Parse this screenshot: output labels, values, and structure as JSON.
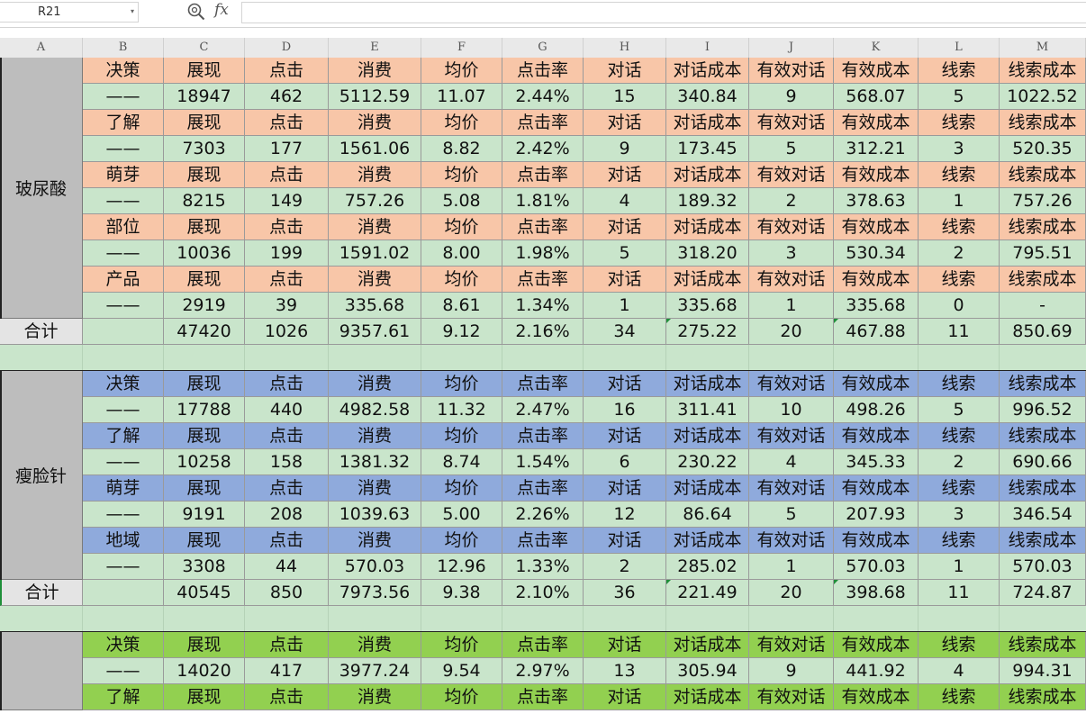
{
  "formula_bar": {
    "cell_ref": "R21",
    "fx_label": "fx",
    "formula": ""
  },
  "columns": [
    "A",
    "B",
    "C",
    "D",
    "E",
    "F",
    "G",
    "H",
    "I",
    "J",
    "K",
    "L",
    "M"
  ],
  "metric_headers": [
    "展现",
    "点击",
    "消费",
    "均价",
    "点击率",
    "对话",
    "对话成本",
    "有效对话",
    "有效成本",
    "线索",
    "线索成本"
  ],
  "dash_label": "——",
  "total_label": "合计",
  "colors": {
    "green_row": "#c9e5cb",
    "group_header": [
      "#f8c6a8",
      "#8faadc",
      "#92d050"
    ],
    "group_label_bg": "#bdbdbd"
  },
  "groups": [
    {
      "name": "玻尿酸",
      "blocks": [
        {
          "label": "决策",
          "values": [
            "18947",
            "462",
            "5112.59",
            "11.07",
            "2.44%",
            "15",
            "340.84",
            "9",
            "568.07",
            "5",
            "1022.52"
          ]
        },
        {
          "label": "了解",
          "values": [
            "7303",
            "177",
            "1561.06",
            "8.82",
            "2.42%",
            "9",
            "173.45",
            "5",
            "312.21",
            "3",
            "520.35"
          ]
        },
        {
          "label": "萌芽",
          "values": [
            "8215",
            "149",
            "757.26",
            "5.08",
            "1.81%",
            "4",
            "189.32",
            "2",
            "378.63",
            "1",
            "757.26"
          ]
        },
        {
          "label": "部位",
          "values": [
            "10036",
            "199",
            "1591.02",
            "8.00",
            "1.98%",
            "5",
            "318.20",
            "3",
            "530.34",
            "2",
            "795.51"
          ]
        },
        {
          "label": "产品",
          "values": [
            "2919",
            "39",
            "335.68",
            "8.61",
            "1.34%",
            "1",
            "335.68",
            "1",
            "335.68",
            "0",
            "-"
          ]
        }
      ],
      "total": [
        "47420",
        "1026",
        "9357.61",
        "9.12",
        "2.16%",
        "34",
        "275.22",
        "20",
        "467.88",
        "11",
        "850.69"
      ]
    },
    {
      "name": "瘦脸针",
      "blocks": [
        {
          "label": "决策",
          "values": [
            "17788",
            "440",
            "4982.58",
            "11.32",
            "2.47%",
            "16",
            "311.41",
            "10",
            "498.26",
            "5",
            "996.52"
          ]
        },
        {
          "label": "了解",
          "values": [
            "10258",
            "158",
            "1381.32",
            "8.74",
            "1.54%",
            "6",
            "230.22",
            "4",
            "345.33",
            "2",
            "690.66"
          ]
        },
        {
          "label": "萌芽",
          "values": [
            "9191",
            "208",
            "1039.63",
            "5.00",
            "2.26%",
            "12",
            "86.64",
            "5",
            "207.93",
            "3",
            "346.54"
          ]
        },
        {
          "label": "地域",
          "values": [
            "3308",
            "44",
            "570.03",
            "12.96",
            "1.33%",
            "2",
            "285.02",
            "1",
            "570.03",
            "1",
            "570.03"
          ]
        }
      ],
      "total": [
        "40545",
        "850",
        "7973.56",
        "9.38",
        "2.10%",
        "36",
        "221.49",
        "20",
        "398.68",
        "11",
        "724.87"
      ]
    },
    {
      "name": "",
      "blocks": [
        {
          "label": "决策",
          "values": [
            "14020",
            "417",
            "3977.24",
            "9.54",
            "2.97%",
            "13",
            "305.94",
            "9",
            "441.92",
            "4",
            "994.31"
          ]
        },
        {
          "label": "了解",
          "values": null
        }
      ],
      "total": null
    }
  ]
}
